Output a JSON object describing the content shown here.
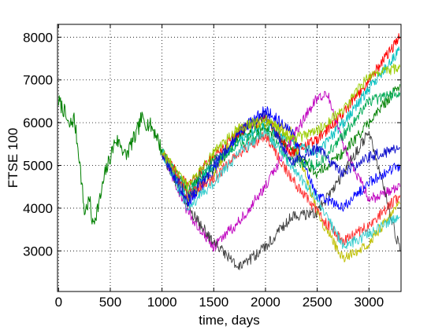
{
  "chart_data": {
    "type": "line",
    "title": "",
    "xlabel": "time, days",
    "ylabel": "FTSE 100",
    "xlim": [
      -10,
      3310
    ],
    "ylim": [
      2050,
      8300
    ],
    "grid": true,
    "grid_style": "dotted",
    "xticks": [
      0,
      500,
      1000,
      1500,
      2000,
      2500,
      3000
    ],
    "yticks": [
      3000,
      4000,
      5000,
      6000,
      7000,
      8000
    ],
    "xtick_labels": [
      "0",
      "500",
      "1000",
      "1500",
      "2000",
      "2500",
      "3000"
    ],
    "ytick_labels": [
      "3000",
      "4000",
      "5000",
      "6000",
      "7000",
      "8000"
    ],
    "history": {
      "color": "#008000",
      "x": [
        0,
        50,
        100,
        150,
        200,
        250,
        300,
        330,
        400,
        450,
        500,
        550,
        600,
        650,
        700,
        750,
        800,
        850,
        900,
        950,
        1000
      ],
      "y": [
        6500,
        6300,
        5900,
        6100,
        5200,
        3900,
        4200,
        3600,
        4200,
        4800,
        5200,
        5600,
        5500,
        5200,
        5500,
        5700,
        6100,
        6000,
        5900,
        5700,
        5300
      ]
    },
    "series": [
      {
        "color": "#008000",
        "x": [
          1000,
          1250,
          1500,
          1750,
          2000,
          2250,
          2500,
          2750,
          3000,
          3300
        ],
        "y": [
          5300,
          4400,
          4900,
          5700,
          5900,
          5400,
          4800,
          5300,
          6000,
          6900
        ]
      },
      {
        "color": "#ff0000",
        "x": [
          1000,
          1250,
          1500,
          1750,
          2000,
          2250,
          2500,
          2750,
          3000,
          3300
        ],
        "y": [
          5300,
          4500,
          5200,
          5800,
          6100,
          5300,
          5600,
          6200,
          7000,
          8000
        ]
      },
      {
        "color": "#00bfbf",
        "x": [
          1000,
          1250,
          1500,
          1750,
          2000,
          2250,
          2500,
          2750,
          3000,
          3300
        ],
        "y": [
          5300,
          4300,
          5000,
          5600,
          6000,
          5500,
          5300,
          6000,
          6800,
          7700
        ]
      },
      {
        "color": "#bfbf00",
        "x": [
          1000,
          1250,
          1500,
          1750,
          2000,
          2250,
          2500,
          2750,
          3000,
          3300
        ],
        "y": [
          5300,
          4200,
          4800,
          5900,
          6000,
          5800,
          3900,
          2800,
          3200,
          4100
        ]
      },
      {
        "color": "#bf00bf",
        "x": [
          1000,
          1250,
          1500,
          1750,
          2000,
          2250,
          2500,
          2600,
          2750,
          3000,
          3300
        ],
        "y": [
          5300,
          3900,
          3100,
          3700,
          4500,
          5600,
          6600,
          6700,
          5500,
          4200,
          4500
        ]
      },
      {
        "color": "#404040",
        "x": [
          1000,
          1250,
          1500,
          1750,
          2000,
          2250,
          2500,
          2750,
          3000,
          3300
        ],
        "y": [
          5300,
          4000,
          3200,
          2600,
          3100,
          3800,
          3900,
          4800,
          5800,
          3000
        ]
      },
      {
        "color": "#0000ff",
        "x": [
          1000,
          1250,
          1500,
          1750,
          2000,
          2250,
          2500,
          2750,
          3000,
          3300
        ],
        "y": [
          5300,
          4100,
          4900,
          5800,
          6300,
          5800,
          4300,
          4000,
          4600,
          5000
        ]
      },
      {
        "color": "#00aa55",
        "x": [
          1000,
          1250,
          1500,
          1750,
          2000,
          2250,
          2500,
          2750,
          3000,
          3300
        ],
        "y": [
          5300,
          4400,
          5100,
          5500,
          5800,
          5100,
          5000,
          5700,
          6500,
          6700
        ]
      },
      {
        "color": "#ff3333",
        "x": [
          1000,
          1250,
          1500,
          1750,
          2000,
          2250,
          2500,
          2750,
          3000,
          3300
        ],
        "y": [
          5300,
          4300,
          4700,
          5300,
          5700,
          4700,
          3900,
          3200,
          3600,
          4300
        ]
      },
      {
        "color": "#33cccc",
        "x": [
          1000,
          1250,
          1500,
          1750,
          2000,
          2250,
          2500,
          2750,
          3000,
          3300
        ],
        "y": [
          5300,
          4000,
          4600,
          5300,
          5800,
          5000,
          4200,
          3100,
          3400,
          3800
        ]
      },
      {
        "color": "#1010cc",
        "x": [
          1000,
          1250,
          1500,
          1750,
          2000,
          2250,
          2500,
          2750,
          3000,
          3300
        ],
        "y": [
          5300,
          4200,
          5000,
          5800,
          6200,
          5100,
          5400,
          4800,
          5200,
          5400
        ]
      },
      {
        "color": "#99cc00",
        "x": [
          1000,
          1250,
          1500,
          1750,
          2000,
          2250,
          2500,
          2750,
          3000,
          3300
        ],
        "y": [
          5300,
          4500,
          5300,
          5900,
          6100,
          5600,
          5800,
          6300,
          7100,
          7300
        ]
      }
    ]
  }
}
